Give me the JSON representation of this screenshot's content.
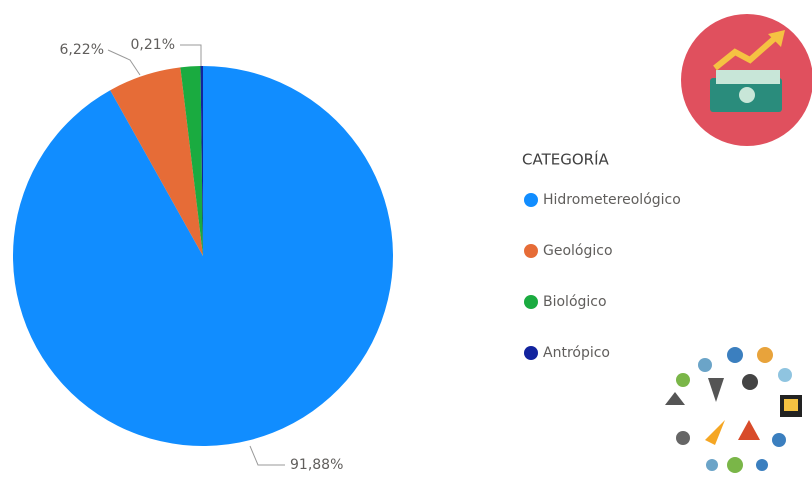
{
  "chart_data": {
    "type": "pie",
    "categories": [
      "Hidrometereológico",
      "Geológico",
      "Biológico",
      "Antrópico"
    ],
    "values": [
      91.88,
      6.22,
      1.69,
      0.21
    ],
    "value_labels": [
      "91,88%",
      "6,22%",
      null,
      "0,21%"
    ],
    "colors": [
      "#118dff",
      "#e66c37",
      "#1aab40",
      "#12239e"
    ],
    "legend_title": "CATEGORÍA",
    "legend": "right"
  }
}
